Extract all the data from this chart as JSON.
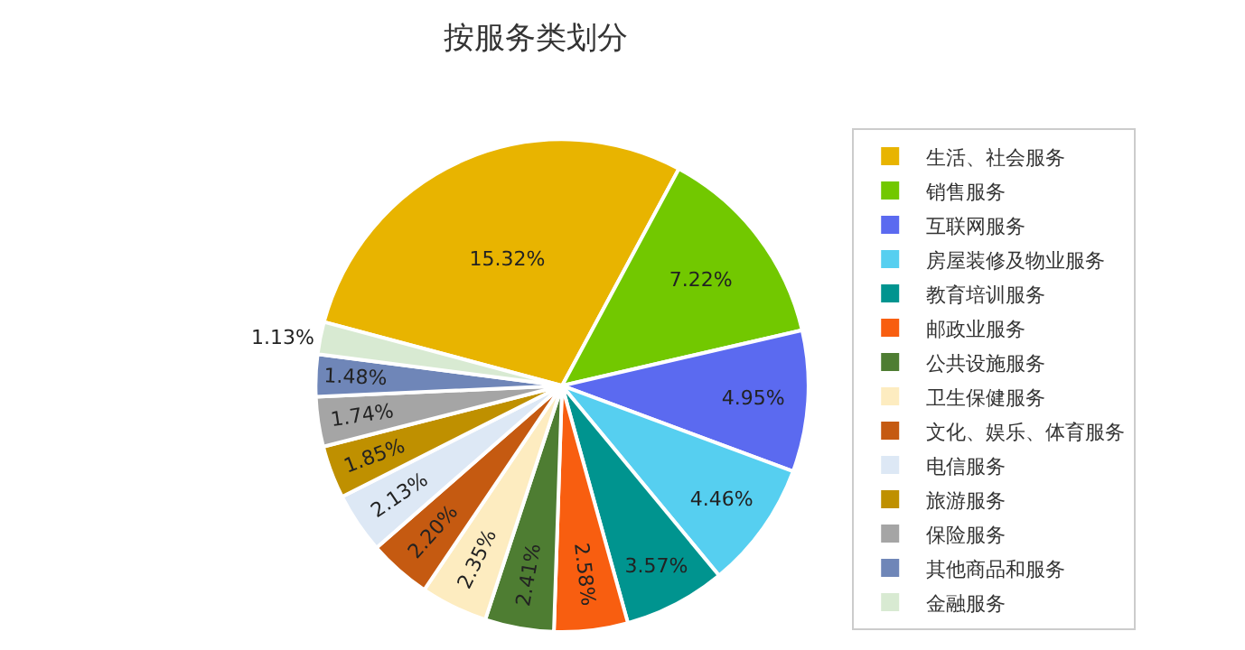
{
  "chart_data": {
    "type": "pie",
    "title": "按服务类划分",
    "categories": [
      "生活、社会服务",
      "销售服务",
      "互联网服务",
      "房屋装修及物业服务",
      "教育培训服务",
      "邮政业服务",
      "公共设施服务",
      "卫生保健服务",
      "文化、娱乐、体育服务",
      "电信服务",
      "旅游服务",
      "保险服务",
      "其他商品和服务",
      "金融服务"
    ],
    "values": [
      15.32,
      7.22,
      4.95,
      4.46,
      3.57,
      2.58,
      2.41,
      2.35,
      2.2,
      2.13,
      1.85,
      1.74,
      1.48,
      1.13
    ],
    "value_labels": [
      "15.32%",
      "7.22%",
      "4.95%",
      "4.46%",
      "3.57%",
      "2.58%",
      "2.41%",
      "2.35%",
      "2.20%",
      "2.13%",
      "1.85%",
      "1.74%",
      "1.48%",
      "1.13%"
    ],
    "colors": [
      "#e8b400",
      "#72c800",
      "#5b6af0",
      "#56cff0",
      "#00948f",
      "#f85e10",
      "#4e7d32",
      "#fdecc0",
      "#c55a11",
      "#dde8f5",
      "#bf9000",
      "#a5a5a5",
      "#6f86b8",
      "#d8ead2"
    ],
    "legend": "right"
  }
}
